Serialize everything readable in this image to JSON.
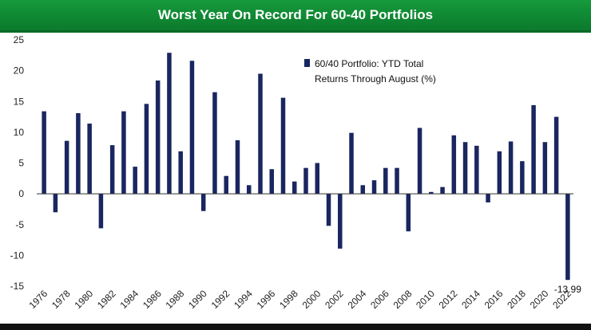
{
  "header": {
    "title": "Worst Year On Record For 60-40 Portfolios"
  },
  "colors": {
    "bar": "#1a2660",
    "title_bg": "#12913a",
    "axis": "#333333"
  },
  "chart_data": {
    "type": "bar",
    "title": "Worst Year On Record For 60-40 Portfolios",
    "xlabel": "",
    "ylabel": "",
    "ylim": [
      -15,
      25
    ],
    "yticks": [
      25,
      20,
      15,
      10,
      5,
      0,
      -5,
      -10,
      -15
    ],
    "grid": false,
    "legend_position": "top-center",
    "categories": [
      1976,
      1977,
      1978,
      1979,
      1980,
      1981,
      1982,
      1983,
      1984,
      1985,
      1986,
      1987,
      1988,
      1989,
      1990,
      1991,
      1992,
      1993,
      1994,
      1995,
      1996,
      1997,
      1998,
      1999,
      2000,
      2001,
      2002,
      2003,
      2004,
      2005,
      2006,
      2007,
      2008,
      2009,
      2010,
      2011,
      2012,
      2013,
      2014,
      2015,
      2016,
      2017,
      2018,
      2019,
      2020,
      2021,
      2022
    ],
    "xtick_labels": [
      "1976",
      "1978",
      "1980",
      "1982",
      "1984",
      "1986",
      "1988",
      "1990",
      "1992",
      "1994",
      "1996",
      "1998",
      "2000",
      "2002",
      "2004",
      "2006",
      "2008",
      "2010",
      "2012",
      "2014",
      "2016",
      "2018",
      "2020",
      "2022"
    ],
    "series": [
      {
        "name": "60/40 Portfolio: YTD Total Returns Through August (%)",
        "legend_lines": [
          "60/40 Portfolio: YTD Total",
          "Returns Through August (%)"
        ],
        "values": [
          13.4,
          -3.0,
          8.6,
          13.1,
          11.4,
          -5.6,
          7.9,
          13.4,
          4.4,
          14.6,
          18.4,
          22.9,
          6.9,
          21.6,
          -2.8,
          16.5,
          2.9,
          8.7,
          1.4,
          19.5,
          4.0,
          15.6,
          2.0,
          4.2,
          5.0,
          -5.2,
          -8.9,
          9.9,
          1.4,
          2.2,
          4.2,
          4.2,
          -6.1,
          10.7,
          0.3,
          1.1,
          9.5,
          8.4,
          7.8,
          -1.4,
          6.9,
          8.5,
          5.3,
          14.4,
          8.4,
          12.5,
          -13.99
        ]
      }
    ],
    "annotations": [
      {
        "category": 2022,
        "text": "-13.99"
      }
    ]
  }
}
